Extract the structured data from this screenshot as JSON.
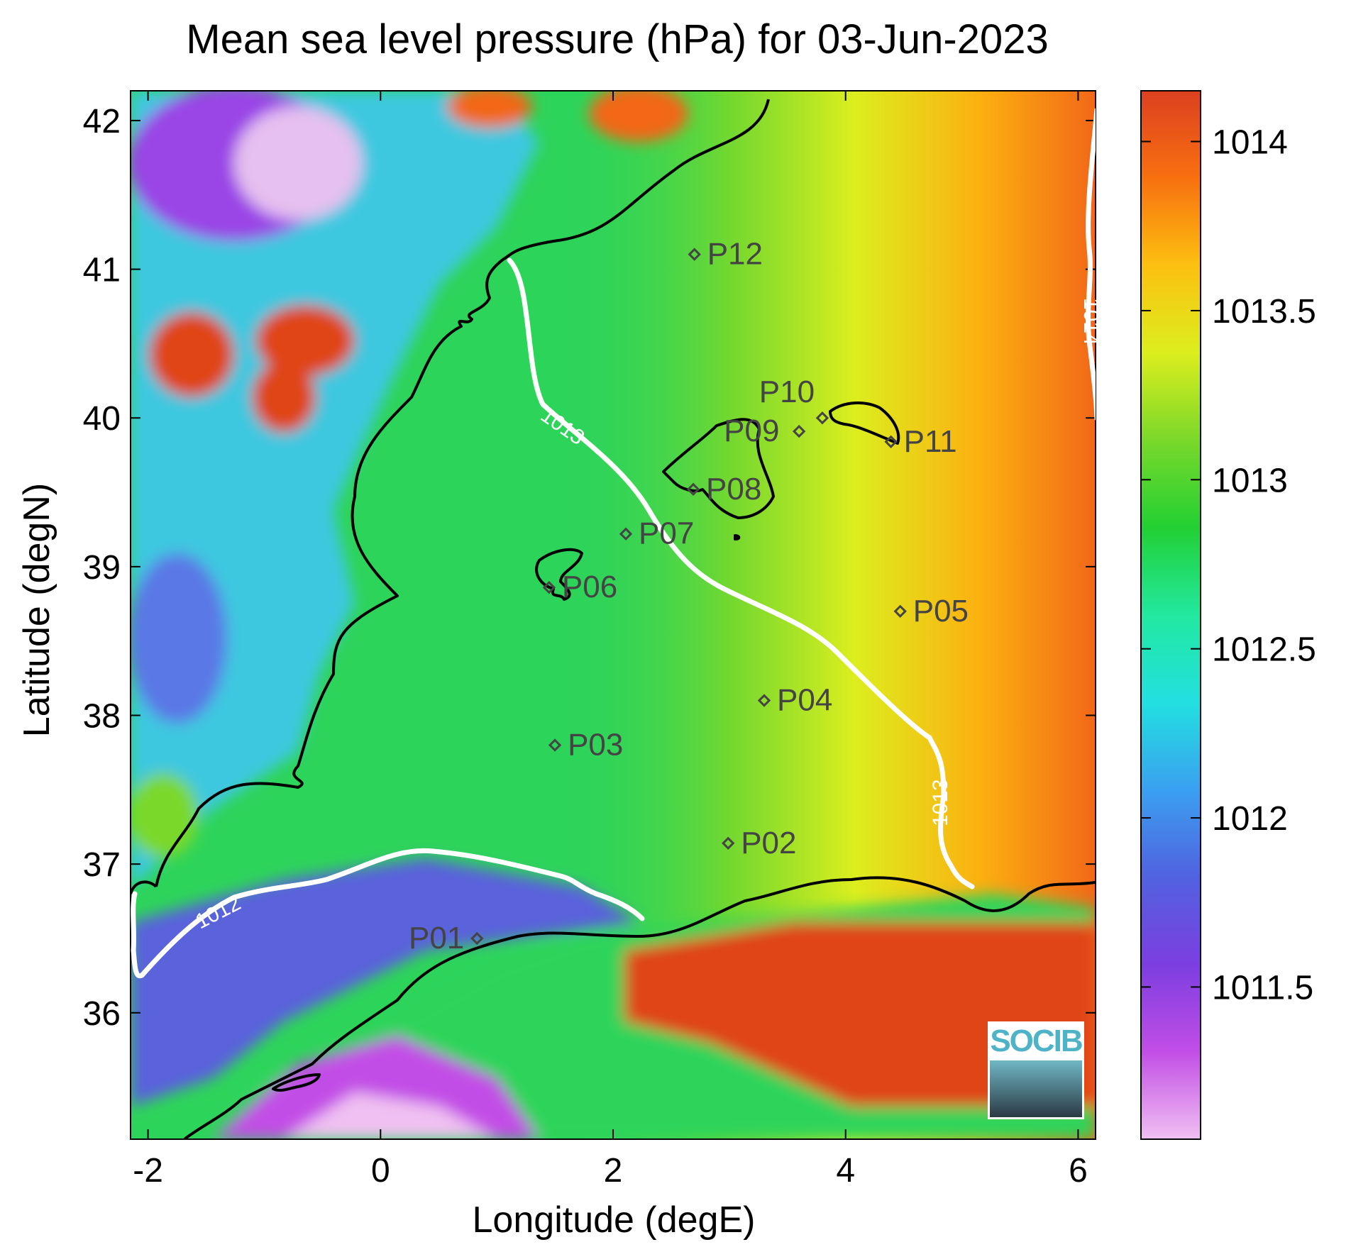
{
  "title": "Mean sea level pressure (hPa) for 03-Jun-2023",
  "chart_data": {
    "type": "heatmap",
    "title": "Mean sea level pressure (hPa) for 03-Jun-2023",
    "xlabel": "Longitude (degE)",
    "ylabel": "Latitude (degN)",
    "xlim": [
      -2.15,
      6.15
    ],
    "ylim": [
      35.15,
      42.2
    ],
    "xticks": [
      -2,
      0,
      2,
      4,
      6
    ],
    "yticks": [
      36,
      37,
      38,
      39,
      40,
      41,
      42
    ],
    "colorbar": {
      "range": [
        1011.05,
        1014.15
      ],
      "ticks": [
        1011.5,
        1012,
        1012.5,
        1013,
        1013.5,
        1014
      ],
      "tick_labels": [
        "1011.5",
        "1012",
        "1012.5",
        "1013",
        "1013.5",
        "1014"
      ],
      "colormap": [
        "#f0c0f2",
        "#c24ee6",
        "#7c3ee0",
        "#5162e0",
        "#3aa0f0",
        "#22e0e0",
        "#22e8a0",
        "#22d033",
        "#7ad82a",
        "#dcee1e",
        "#fcc010",
        "#f87010",
        "#dc4020"
      ]
    },
    "contours": [
      {
        "level": 1012,
        "label": "1012"
      },
      {
        "level": 1013,
        "label": "1013"
      },
      {
        "level": 1014,
        "label": "1014"
      }
    ],
    "stations": [
      {
        "name": "P01",
        "lon": 0.83,
        "lat": 36.5
      },
      {
        "name": "P02",
        "lon": 2.99,
        "lat": 37.14
      },
      {
        "name": "P03",
        "lon": 1.5,
        "lat": 37.8
      },
      {
        "name": "P04",
        "lon": 3.3,
        "lat": 38.1
      },
      {
        "name": "P05",
        "lon": 4.47,
        "lat": 38.7
      },
      {
        "name": "P06",
        "lon": 1.45,
        "lat": 38.86
      },
      {
        "name": "P07",
        "lon": 2.11,
        "lat": 39.22
      },
      {
        "name": "P08",
        "lon": 2.69,
        "lat": 39.52
      },
      {
        "name": "P09",
        "lon": 3.6,
        "lat": 39.91
      },
      {
        "name": "P10",
        "lon": 3.8,
        "lat": 40.0
      },
      {
        "name": "P11",
        "lon": 4.39,
        "lat": 39.84
      },
      {
        "name": "P12",
        "lon": 2.7,
        "lat": 41.1
      }
    ]
  },
  "logo": {
    "text": "SOCIB"
  }
}
